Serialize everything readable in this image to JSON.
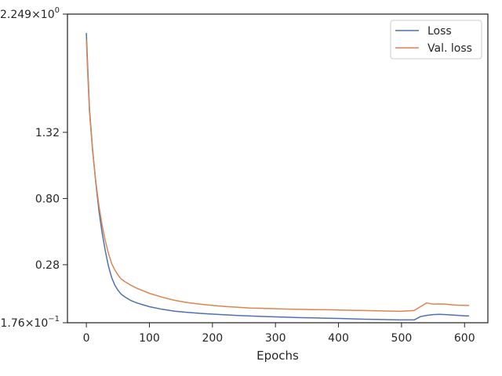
{
  "chart_data": {
    "type": "line",
    "title": "",
    "xlabel": "Epochs",
    "ylabel": "",
    "xlim": [
      -30,
      637
    ],
    "ylim": [
      -0.176,
      2.249
    ],
    "x_ticks": [
      0,
      100,
      200,
      300,
      400,
      500,
      600
    ],
    "x_tick_labels": [
      "0",
      "100",
      "200",
      "300",
      "400",
      "500",
      "600"
    ],
    "y_ticks": [
      -0.176,
      0.28,
      0.8,
      1.32,
      2.249
    ],
    "y_tick_labels": [
      "-1.76 × 10^-1",
      "0.28",
      "0.80",
      "1.32",
      "2.249 × 10^0"
    ],
    "grid": false,
    "legend_position": "top-right",
    "colors": {
      "Loss": "#4c72b0",
      "Val. loss": "#dd8452"
    },
    "x": [
      0,
      2,
      5,
      10,
      15,
      20,
      25,
      30,
      35,
      40,
      45,
      50,
      55,
      60,
      70,
      80,
      90,
      100,
      120,
      140,
      160,
      180,
      200,
      220,
      240,
      260,
      280,
      300,
      320,
      340,
      360,
      380,
      400,
      420,
      440,
      460,
      480,
      500,
      520,
      530,
      540,
      550,
      560,
      570,
      580,
      590,
      600,
      607
    ],
    "series": [
      {
        "name": "Loss",
        "values": [
          2.1,
          1.85,
          1.5,
          1.18,
          0.92,
          0.7,
          0.53,
          0.39,
          0.27,
          0.18,
          0.12,
          0.08,
          0.05,
          0.03,
          0.0,
          -0.02,
          -0.035,
          -0.05,
          -0.07,
          -0.085,
          -0.095,
          -0.102,
          -0.108,
          -0.114,
          -0.119,
          -0.123,
          -0.127,
          -0.13,
          -0.133,
          -0.136,
          -0.138,
          -0.14,
          -0.142,
          -0.145,
          -0.148,
          -0.15,
          -0.152,
          -0.154,
          -0.154,
          -0.128,
          -0.118,
          -0.112,
          -0.11,
          -0.112,
          -0.115,
          -0.118,
          -0.122,
          -0.122
        ]
      },
      {
        "name": "Val. loss",
        "values": [
          2.05,
          1.8,
          1.48,
          1.17,
          0.93,
          0.74,
          0.59,
          0.47,
          0.37,
          0.29,
          0.24,
          0.2,
          0.17,
          0.15,
          0.12,
          0.095,
          0.075,
          0.055,
          0.025,
          0.0,
          -0.018,
          -0.03,
          -0.04,
          -0.048,
          -0.055,
          -0.06,
          -0.063,
          -0.066,
          -0.069,
          -0.071,
          -0.073,
          -0.074,
          -0.076,
          -0.078,
          -0.08,
          -0.082,
          -0.084,
          -0.086,
          -0.08,
          -0.05,
          -0.02,
          -0.03,
          -0.028,
          -0.03,
          -0.035,
          -0.038,
          -0.04,
          -0.04
        ]
      }
    ]
  }
}
